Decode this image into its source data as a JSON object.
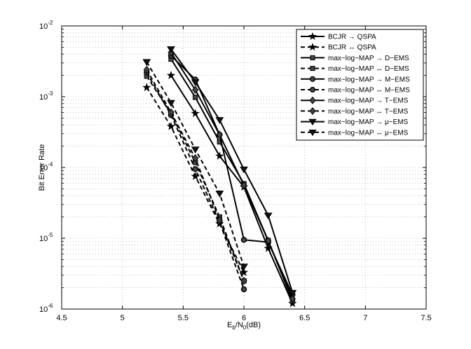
{
  "chart_data": {
    "type": "line",
    "xlabel_main": "E",
    "xlabel_sub": "b",
    "xlabel_mid": "/N",
    "xlabel_sub2": "0",
    "xlabel_end": "(dB)",
    "ylabel": "Bit Error Rate",
    "xlim": [
      4.5,
      7.5
    ],
    "ylim": [
      1e-06,
      0.01
    ],
    "yscale": "log",
    "grid": true,
    "legend_position": "top-right",
    "xticks": [
      "4.5",
      "5",
      "5.5",
      "6",
      "6.5",
      "7",
      "7.5"
    ],
    "yticks": [
      {
        "base": "10",
        "exp": "-6"
      },
      {
        "base": "10",
        "exp": "-5"
      },
      {
        "base": "10",
        "exp": "-4"
      },
      {
        "base": "10",
        "exp": "-3"
      },
      {
        "base": "10",
        "exp": "-2"
      }
    ],
    "series": [
      {
        "name": "BCJR → QSPA",
        "marker": "star",
        "dash": false,
        "x": [
          5.4,
          5.6,
          5.8,
          6.0,
          6.2,
          6.4
        ],
        "y": [
          0.002,
          0.00058,
          0.000145,
          5.3e-05,
          7.2e-06,
          1.2e-06
        ]
      },
      {
        "name": "BCJR ↔ QSPA",
        "marker": "star",
        "dash": true,
        "x": [
          5.2,
          5.4,
          5.6,
          5.8,
          6.0
        ],
        "y": [
          0.00135,
          0.00038,
          7.5e-05,
          1.6e-05,
          3.3e-06
        ]
      },
      {
        "name": "max−log−MAP → D−EMS",
        "marker": "square",
        "dash": false,
        "x": [
          5.4,
          5.6,
          5.8,
          6.0,
          6.2,
          6.4
        ],
        "y": [
          0.0034,
          0.00098,
          0.00023,
          5.9e-05,
          9.3e-06,
          1.3e-06
        ]
      },
      {
        "name": "max−log−MAP ↔ D−EMS",
        "marker": "square",
        "dash": true,
        "x": [
          5.2,
          5.4,
          5.6,
          5.8,
          6.0
        ],
        "y": [
          0.00195,
          0.00058,
          0.000118,
          2e-05,
          2.5e-06
        ]
      },
      {
        "name": "max−log−MAP → M−EMS",
        "marker": "circle",
        "dash": false,
        "x": [
          5.4,
          5.6,
          5.8,
          6.0,
          6.2,
          6.4
        ],
        "y": [
          0.0038,
          0.00175,
          0.00029,
          9.5e-06,
          8.8e-06,
          1.6e-06
        ]
      },
      {
        "name": "max−log−MAP ↔ M−EMS",
        "marker": "circle",
        "dash": true,
        "x": [
          5.2,
          5.4,
          5.6,
          5.8,
          6.0
        ],
        "y": [
          0.0022,
          0.00055,
          9.5e-05,
          1.7e-05,
          1.9e-06
        ]
      },
      {
        "name": "max−log−MAP → T−EMS",
        "marker": "diamond",
        "dash": false,
        "x": [
          5.4,
          5.6,
          5.8,
          6.0,
          6.2,
          6.4
        ],
        "y": [
          0.0042,
          0.00125,
          0.00029,
          5.6e-05,
          9.2e-06,
          1.4e-06
        ]
      },
      {
        "name": "max−log−MAP ↔ T−EMS",
        "marker": "diamond",
        "dash": true,
        "x": [
          5.2,
          5.4,
          5.6,
          5.8,
          6.0
        ],
        "y": [
          0.0024,
          0.0006,
          0.000135,
          1.8e-05,
          2.5e-06
        ]
      },
      {
        "name": "max−log−MAP → μ−EMS",
        "marker": "triangle",
        "dash": false,
        "x": [
          5.4,
          5.6,
          5.8,
          6.0,
          6.2,
          6.4
        ],
        "y": [
          0.0047,
          0.0016,
          0.00047,
          9.4e-05,
          2.1e-05,
          1.7e-06
        ]
      },
      {
        "name": "max−log−MAP ↔ μ−EMS",
        "marker": "triangle",
        "dash": true,
        "x": [
          5.2,
          5.4,
          5.6,
          5.8,
          6.0
        ],
        "y": [
          0.0031,
          0.00082,
          0.00018,
          4.3e-05,
          4e-06
        ]
      }
    ]
  }
}
